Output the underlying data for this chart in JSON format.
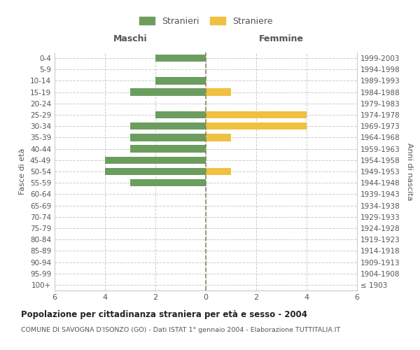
{
  "age_groups": [
    "100+",
    "95-99",
    "90-94",
    "85-89",
    "80-84",
    "75-79",
    "70-74",
    "65-69",
    "60-64",
    "55-59",
    "50-54",
    "45-49",
    "40-44",
    "35-39",
    "30-34",
    "25-29",
    "20-24",
    "15-19",
    "10-14",
    "5-9",
    "0-4"
  ],
  "birth_years": [
    "≤ 1903",
    "1904-1908",
    "1909-1913",
    "1914-1918",
    "1919-1923",
    "1924-1928",
    "1929-1933",
    "1934-1938",
    "1939-1943",
    "1944-1948",
    "1949-1953",
    "1954-1958",
    "1959-1963",
    "1964-1968",
    "1969-1973",
    "1974-1978",
    "1979-1983",
    "1984-1988",
    "1989-1993",
    "1994-1998",
    "1999-2003"
  ],
  "males": [
    0,
    0,
    0,
    0,
    0,
    0,
    0,
    0,
    0,
    3,
    4,
    4,
    3,
    3,
    3,
    2,
    0,
    3,
    2,
    0,
    2
  ],
  "females": [
    0,
    0,
    0,
    0,
    0,
    0,
    0,
    0,
    0,
    0,
    1,
    0,
    0,
    1,
    4,
    4,
    0,
    1,
    0,
    0,
    0
  ],
  "male_color": "#6b9e5e",
  "female_color": "#f0c040",
  "grid_color": "#cccccc",
  "center_line_color": "#888866",
  "title": "Popolazione per cittadinanza straniera per età e sesso - 2004",
  "subtitle": "COMUNE DI SAVOGNA D'ISONZO (GO) - Dati ISTAT 1° gennaio 2004 - Elaborazione TUTTITALIA.IT",
  "xlabel_left": "Maschi",
  "xlabel_right": "Femmine",
  "ylabel_left": "Fasce di età",
  "ylabel_right": "Anni di nascita",
  "legend_males": "Stranieri",
  "legend_females": "Straniere",
  "xlim": 6,
  "background_color": "#ffffff"
}
